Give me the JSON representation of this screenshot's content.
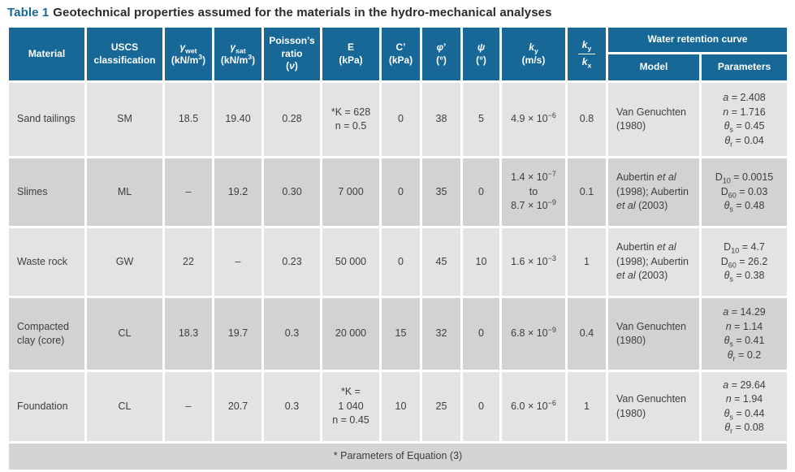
{
  "title": {
    "label": "Table 1",
    "text": "Geotechnical properties assumed for the materials in the hydro-mechanical analyses"
  },
  "colors": {
    "header_bg": "#176896",
    "row_odd": "#e3e3e5",
    "row_even": "#d2d2d4",
    "footer_bg": "#d4d4d6",
    "header_text": "#ffffff",
    "body_text": "#3e3e40",
    "title_accent": "#176896"
  },
  "table": {
    "headers": {
      "material": "Material",
      "uscs": "USCS classification",
      "gamma_wet": "<i>γ</i><sub>wet</sub><br>(kN/m<sup>3</sup>)",
      "gamma_sat": "<i>γ</i><sub>sat</sub><br>(kN/m<sup>3</sup>)",
      "poisson": "Poisson’s<br>ratio<br>(<i>ν</i>)",
      "E": "E<br>(kPa)",
      "c_prime": "C’<br>(kPa)",
      "phi_prime": "<i>φ</i>’<br>(°)",
      "psi": "<i>ψ</i><br>(°)",
      "ky": "<i>k</i><sub>y</sub><br>(m/s)",
      "ky_over_kx": {
        "numerator": "<i>k</i><sub>y</sub>",
        "denominator": "<i>k</i><sub>x</sub>"
      },
      "water_retention": "Water retention curve",
      "model": "Model",
      "parameters": "Parameters"
    },
    "rows": [
      {
        "cells": [
          "Sand tailings",
          "SM",
          "18.5",
          "19.40",
          "0.28",
          "*K = 628<br>n = 0.5",
          "0",
          "38",
          "5",
          "4.9 × 10<sup>−6</sup>",
          "0.8",
          "Van Genuchten (1980)",
          "<i>a</i> = 2.408<br><i>n</i> = 1.716<br><i>θ</i><sub>s</sub> = 0.45<br><i>θ</i><sub>r</sub> = 0.04"
        ]
      },
      {
        "cells": [
          "Slimes",
          "ML",
          "–",
          "19.2",
          "0.30",
          "7 000",
          "0",
          "35",
          "0",
          "1.4 × 10<sup>−7</sup><br>to<br>8.7 × 10<sup>−9</sup>",
          "0.1",
          "Aubertin <i>et al</i> (1998); Aubertin <i>et al</i> (2003)",
          "D<sub>10</sub> = 0.0015<br>D<sub>60</sub> = 0.03<br><i>θ</i><sub>s</sub> = 0.48"
        ]
      },
      {
        "cells": [
          "Waste rock",
          "GW",
          "22",
          "–",
          "0.23",
          "50 000",
          "0",
          "45",
          "10",
          "1.6 × 10<sup>−3</sup>",
          "1",
          "Aubertin <i>et al</i> (1998); Aubertin <i>et al</i> (2003)",
          "D<sub>10</sub> = 4.7<br>D<sub>60</sub> = 26.2<br><i>θ</i><sub>s</sub> = 0.38"
        ]
      },
      {
        "cells": [
          "Compacted clay (core)",
          "CL",
          "18.3",
          "19.7",
          "0.3",
          "20 000",
          "15",
          "32",
          "0",
          "6.8 × 10<sup>−9</sup>",
          "0.4",
          "Van Genuchten (1980)",
          "<i>a</i> = 14.29<br><i>n</i> = 1.14<br><i>θ</i><sub>s</sub> = 0.41<br><i>θ</i><sub>r</sub> = 0.2"
        ]
      },
      {
        "cells": [
          "Foundation",
          "CL",
          "–",
          "20.7",
          "0.3",
          "*K =<br>1 040<br>n = 0.45",
          "10",
          "25",
          "0",
          "6.0 × 10<sup>−6</sup>",
          "1",
          "Van Genuchten (1980)",
          "<i>a</i> = 29.64<br><i>n</i> = 1.94<br><i>θ</i><sub>s</sub> = 0.44<br><i>θ</i><sub>r</sub> = 0.08"
        ]
      }
    ]
  },
  "footnote": "* Parameters of Equation (3)"
}
